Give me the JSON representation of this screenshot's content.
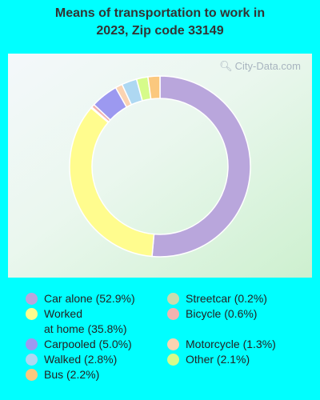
{
  "title_lines": [
    "Means of transportation to work in",
    "2023, Zip code 33149"
  ],
  "watermark": "City-Data.com",
  "chart_data": {
    "type": "pie",
    "donut": true,
    "title": "Means of transportation to work in 2023, Zip code 33149",
    "unit": "%",
    "categories": [
      "Car alone",
      "Worked at home",
      "Streetcar",
      "Bicycle",
      "Carpooled",
      "Motorcycle",
      "Walked",
      "Other",
      "Bus"
    ],
    "values": [
      52.9,
      35.8,
      0.2,
      0.6,
      5.0,
      1.3,
      2.8,
      2.1,
      2.2
    ],
    "colors": [
      "#b9a6dc",
      "#fffc8e",
      "#c9dcae",
      "#f2b3b0",
      "#9c99f0",
      "#fbd3b1",
      "#aed8f2",
      "#d6fb8a",
      "#fbc87e"
    ],
    "legend_placement": "bottom"
  },
  "legend": [
    {
      "lines": [
        "Car alone (52.9%)"
      ],
      "color": "#b9a6dc"
    },
    {
      "lines": [
        "Worked",
        "at home (35.8%)"
      ],
      "color": "#fffc8e"
    },
    {
      "lines": [
        "Carpooled (5.0%)"
      ],
      "color": "#9c99f0"
    },
    {
      "lines": [
        "Walked (2.8%)"
      ],
      "color": "#aed8f2"
    },
    {
      "lines": [
        "Bus (2.2%)"
      ],
      "color": "#fbc87e"
    },
    {
      "lines": [
        "Streetcar (0.2%)"
      ],
      "color": "#c9dcae"
    },
    {
      "lines": [
        "Bicycle (0.6%)"
      ],
      "color": "#f2b3b0"
    },
    {
      "lines": [
        "Motorcycle (1.3%)"
      ],
      "color": "#fbd3b1"
    },
    {
      "lines": [
        "Other (2.1%)"
      ],
      "color": "#d6fb8a"
    }
  ]
}
